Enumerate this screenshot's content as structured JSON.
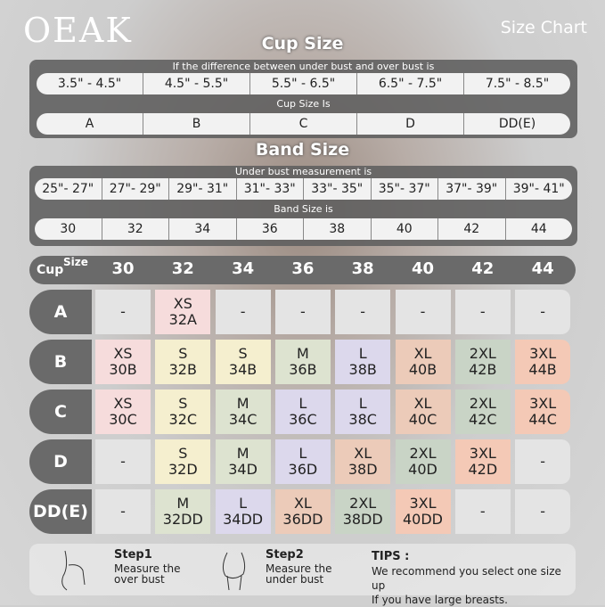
{
  "brand": "OEAK",
  "title": "Size Chart",
  "cup": {
    "heading": "Cup Size",
    "diff_label": "If the  difference between under bust and over bust is",
    "ranges": [
      "3.5\" - 4.5\"",
      "4.5\" - 5.5\"",
      "5.5\" - 6.5\"",
      "6.5\" - 7.5\"",
      "7.5\" - 8.5\""
    ],
    "cup_label": "Cup Size Is",
    "cups": [
      "A",
      "B",
      "C",
      "D",
      "DD(E)"
    ]
  },
  "band": {
    "heading": "Band Size",
    "under_label": "Under bust measurement is",
    "ranges": [
      "25\"- 27\"",
      "27\"- 29\"",
      "29\"- 31\"",
      "31\"- 33\"",
      "33\"- 35\"",
      "35\"- 37\"",
      "37\"- 39\"",
      "39\"- 41\""
    ],
    "band_label": "Band Size is",
    "bands": [
      "30",
      "32",
      "34",
      "36",
      "38",
      "40",
      "42",
      "44"
    ]
  },
  "grid": {
    "corner_size": "Size",
    "corner_cup": "Cup",
    "columns": [
      "30",
      "32",
      "34",
      "36",
      "38",
      "40",
      "42",
      "44"
    ],
    "rows": [
      {
        "cup": "A",
        "cells": [
          "-",
          "XS|32A",
          "-",
          "-",
          "-",
          "-",
          "-",
          "-"
        ]
      },
      {
        "cup": "B",
        "cells": [
          "XS|30B",
          "S|32B",
          "S|34B",
          "M|36B",
          "L|38B",
          "XL|40B",
          "2XL|42B",
          "3XL|44B"
        ]
      },
      {
        "cup": "C",
        "cells": [
          "XS|30C",
          "S|32C",
          "M|34C",
          "L|36C",
          "L|38C",
          "XL|40C",
          "2XL|42C",
          "3XL|44C"
        ]
      },
      {
        "cup": "D",
        "cells": [
          "-",
          "S|32D",
          "M|34D",
          "L|36D",
          "XL|38D",
          "2XL|40D",
          "3XL|42D",
          "-"
        ]
      },
      {
        "cup": "DD(E)",
        "cells": [
          "-",
          "M|32DD",
          "L|34DD",
          "XL|36DD",
          "2XL|38DD",
          "3XL|40DD",
          "-",
          "-"
        ]
      }
    ]
  },
  "size_colors": {
    "XS": "#f6dcdc",
    "S": "#f5efcf",
    "M": "#dde3d0",
    "L": "#dcd8ec",
    "XL": "#eccbb9",
    "2XL": "#c9d4c6",
    "3XL": "#f4c9b6",
    "-": "#e4e4e4"
  },
  "tips": {
    "step1_title": "Step1",
    "step1_text": "Measure the over bust",
    "step2_title": "Step2",
    "step2_text": "Measure the under bust",
    "tips_title": "TIPS :",
    "tips_line1": "We recommend you select one size up",
    "tips_line2": "If you have large breasts."
  }
}
